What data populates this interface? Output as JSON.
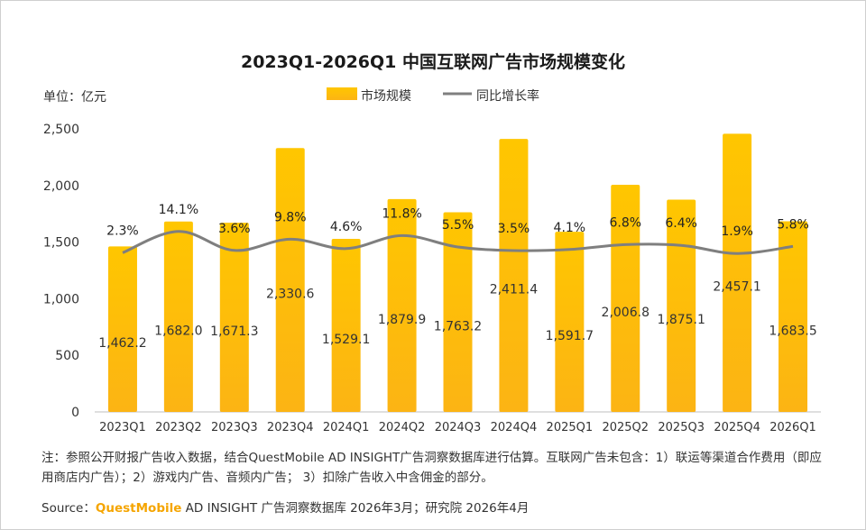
{
  "chart_data": {
    "type": "bar",
    "title": "2023Q1-2026Q1 中国互联网广告市场规模变化",
    "unit_label": "单位：亿元",
    "categories": [
      "2023Q1",
      "2023Q2",
      "2023Q3",
      "2023Q4",
      "2024Q1",
      "2024Q2",
      "2024Q3",
      "2024Q4",
      "2025Q1",
      "2025Q2",
      "2025Q3",
      "2025Q4",
      "2026Q1"
    ],
    "series": [
      {
        "name": "市场规模",
        "type": "bar",
        "color": "#FFC000",
        "values": [
          1462.2,
          1682.0,
          1671.3,
          2330.6,
          1529.1,
          1879.9,
          1763.2,
          2411.4,
          1591.7,
          2006.8,
          1875.1,
          2457.1,
          1683.5
        ],
        "labels": [
          "1,462.2",
          "1,682.0",
          "1,671.3",
          "2,330.6",
          "1,529.1",
          "1,879.9",
          "1,763.2",
          "2,411.4",
          "1,591.7",
          "2,006.8",
          "1,875.1",
          "2,457.1",
          "1,683.5"
        ]
      },
      {
        "name": "同比增长率",
        "type": "line",
        "color": "#7f7f7f",
        "values": [
          2.3,
          14.1,
          3.6,
          9.8,
          4.6,
          11.8,
          5.5,
          3.5,
          4.1,
          6.8,
          6.4,
          1.9,
          5.8
        ],
        "labels": [
          "2.3%",
          "14.1%",
          "3.6%",
          "9.8%",
          "4.6%",
          "11.8%",
          "5.5%",
          "3.5%",
          "4.1%",
          "6.8%",
          "6.4%",
          "1.9%",
          "5.8%"
        ]
      }
    ],
    "y_axis": {
      "range": [
        0,
        2500
      ],
      "ticks": [
        0,
        500,
        1000,
        1500,
        2000,
        2500
      ],
      "tick_labels": [
        "0",
        "500",
        "1,000",
        "1,500",
        "2,000",
        "2,500"
      ]
    },
    "legend_position": "top-center",
    "grid": false
  },
  "footer": {
    "note": "注：参照公开财报广告收入数据，结合QuestMobile AD INSIGHT广告洞察数据库进行估算。互联网广告未包含：1）联运等渠道合作费用（即应用商店内广告）；2）游戏内广告、音频内广告； 3）扣除广告收入中含佣金的部分。",
    "source_prefix": "Source：",
    "source_brand": "QuestMobile",
    "source_rest": " AD INSIGHT 广告洞察数据库 2026年3月；研究院 2026年4月"
  }
}
